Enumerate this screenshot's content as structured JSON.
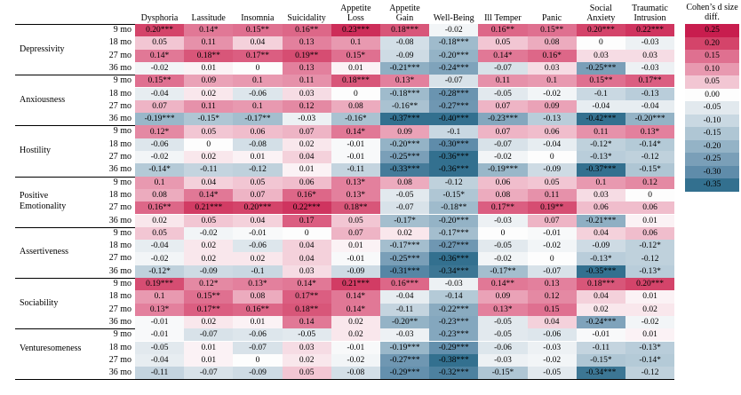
{
  "chart_data": {
    "type": "heatmap",
    "columns": [
      "Dysphoria",
      "Lassitude",
      "Insomnia",
      "Suicidality",
      "Appetite Loss",
      "Appetite Gain",
      "Well-Being",
      "Ill Temper",
      "Panic",
      "Social Anxiety",
      "Traumatic Intrusion"
    ],
    "time_labels": [
      "9 mo",
      "18 mo",
      "27 mo",
      "36 mo"
    ],
    "groups": [
      {
        "name": "Depressivity",
        "rows": [
          [
            "0.20***",
            "0.14*",
            "0.15**",
            "0.16**",
            "0.23***",
            "0.18***",
            "-0.02",
            "0.16**",
            "0.15**",
            "0.20***",
            "0.22***"
          ],
          [
            "0.05",
            "0.11",
            "0.04",
            "0.13",
            "0.1",
            "-0.08",
            "-0.18***",
            "0.05",
            "0.08",
            "0",
            "-0.03"
          ],
          [
            "0.14*",
            "0.18**",
            "0.17**",
            "0.19**",
            "0.15*",
            "-0.09",
            "-0.20***",
            "0.14*",
            "0.16*",
            "0.03",
            "0.03"
          ],
          [
            "-0.02",
            "0.01",
            "0",
            "0.13",
            "0.01",
            "-0.21***",
            "-0.24***",
            "-0.07",
            "0.03",
            "-0.25***",
            "-0.03"
          ]
        ]
      },
      {
        "name": "Anxiousness",
        "rows": [
          [
            "0.15**",
            "0.09",
            "0.1",
            "0.11",
            "0.18***",
            "0.13*",
            "-0.07",
            "0.11",
            "0.1",
            "0.15**",
            "0.17**"
          ],
          [
            "-0.04",
            "0.02",
            "-0.06",
            "0.03",
            "0",
            "-0.18***",
            "-0.28***",
            "-0.05",
            "-0.02",
            "-0.1",
            "-0.13"
          ],
          [
            "0.07",
            "0.11",
            "0.1",
            "0.12",
            "0.08",
            "-0.16**",
            "-0.27***",
            "0.07",
            "0.09",
            "-0.04",
            "-0.04"
          ],
          [
            "-0.19***",
            "-0.15*",
            "-0.17**",
            "-0.03",
            "-0.16*",
            "-0.37***",
            "-0.40***",
            "-0.23***",
            "-0.13",
            "-0.42***",
            "-0.20***"
          ]
        ]
      },
      {
        "name": "Hostility",
        "rows": [
          [
            "0.12*",
            "0.05",
            "0.06",
            "0.07",
            "0.14*",
            "0.09",
            "-0.1",
            "0.07",
            "0.06",
            "0.11",
            "0.13*"
          ],
          [
            "-0.06",
            "0",
            "-0.08",
            "0.02",
            "-0.01",
            "-0.20***",
            "-0.30***",
            "-0.07",
            "-0.04",
            "-0.12*",
            "-0.14*"
          ],
          [
            "-0.02",
            "0.02",
            "0.01",
            "0.04",
            "-0.01",
            "-0.25***",
            "-0.36***",
            "-0.02",
            "0",
            "-0.13*",
            "-0.12"
          ],
          [
            "-0.14*",
            "-0.11",
            "-0.12",
            "0.01",
            "-0.11",
            "-0.33***",
            "-0.36***",
            "-0.19***",
            "-0.09",
            "-0.37***",
            "-0.15*"
          ]
        ]
      },
      {
        "name": "Positive Emotionality",
        "rows": [
          [
            "0.1",
            "0.04",
            "0.05",
            "0.06",
            "0.13*",
            "0.08",
            "-0.12",
            "0.06",
            "0.05",
            "0.1",
            "0.12"
          ],
          [
            "0.08",
            "0.14*",
            "0.07",
            "0.16*",
            "0.13*",
            "-0.05",
            "-0.15*",
            "0.08",
            "0.11",
            "0.03",
            "0"
          ],
          [
            "0.16**",
            "0.21***",
            "0.20***",
            "0.22***",
            "0.18**",
            "-0.07",
            "-0.18**",
            "0.17**",
            "0.19**",
            "0.06",
            "0.06"
          ],
          [
            "0.02",
            "0.05",
            "0.04",
            "0.17",
            "0.05",
            "-0.17*",
            "-0.20***",
            "-0.03",
            "0.07",
            "-0.21***",
            "0.01"
          ]
        ]
      },
      {
        "name": "Assertiveness",
        "rows": [
          [
            "0.05",
            "-0.02",
            "-0.01",
            "0",
            "0.07",
            "0.02",
            "-0.17***",
            "0",
            "-0.01",
            "0.04",
            "0.06"
          ],
          [
            "-0.04",
            "0.02",
            "-0.06",
            "0.04",
            "0.01",
            "-0.17***",
            "-0.27***",
            "-0.05",
            "-0.02",
            "-0.09",
            "-0.12*"
          ],
          [
            "-0.02",
            "0.02",
            "0.02",
            "0.04",
            "-0.01",
            "-0.25***",
            "-0.36***",
            "-0.02",
            "0",
            "-0.13*",
            "-0.12"
          ],
          [
            "-0.12*",
            "-0.09",
            "-0.1",
            "0.03",
            "-0.09",
            "-0.31***",
            "-0.34***",
            "-0.17**",
            "-0.07",
            "-0.35***",
            "-0.13*"
          ]
        ]
      },
      {
        "name": "Sociability",
        "rows": [
          [
            "0.19***",
            "0.12*",
            "0.13*",
            "0.14*",
            "0.21***",
            "0.16***",
            "-0.03",
            "0.14**",
            "0.13",
            "0.18***",
            "0.20***"
          ],
          [
            "0.1",
            "0.15**",
            "0.08",
            "0.17**",
            "0.14*",
            "-0.04",
            "-0.14",
            "0.09",
            "0.12",
            "0.04",
            "0.01"
          ],
          [
            "0.13*",
            "0.17**",
            "0.16**",
            "0.18**",
            "0.14*",
            "-0.11",
            "-0.22***",
            "0.13*",
            "0.15",
            "0.02",
            "0.02"
          ],
          [
            "-0.01",
            "0.02",
            "0.01",
            "0.14",
            "0.02",
            "-0.20**",
            "-0.23***",
            "-0.05",
            "0.04",
            "-0.24***",
            "-0.02"
          ]
        ]
      },
      {
        "name": "Venturesomeness",
        "rows": [
          [
            "-0.01",
            "-0.07",
            "-0.06",
            "-0.05",
            "0.02",
            "-0.03",
            "-0.23***",
            "-0.05",
            "-0.06",
            "-0.01",
            "0.01"
          ],
          [
            "-0.05",
            "0.01",
            "-0.07",
            "0.03",
            "-0.01",
            "-0.19***",
            "-0.29***",
            "-0.06",
            "-0.03",
            "-0.11",
            "-0.13*"
          ],
          [
            "-0.04",
            "0.01",
            "0",
            "0.02",
            "-0.02",
            "-0.27***",
            "-0.38***",
            "-0.03",
            "-0.02",
            "-0.15*",
            "-0.14*"
          ],
          [
            "-0.11",
            "-0.07",
            "-0.09",
            "0.05",
            "-0.08",
            "-0.29***",
            "-0.32***",
            "-0.15*",
            "-0.05",
            "-0.34***",
            "-0.12"
          ]
        ]
      }
    ],
    "legend": {
      "title": "Cohen’s d size diff.",
      "stops": [
        {
          "label": "0.25",
          "value": 0.25,
          "color": "#c81d4e"
        },
        {
          "label": "0.20",
          "value": 0.2,
          "color": "#d4446a"
        },
        {
          "label": "0.15",
          "value": 0.15,
          "color": "#df7090"
        },
        {
          "label": "0.10",
          "value": 0.1,
          "color": "#e899b0"
        },
        {
          "label": "0.05",
          "value": 0.05,
          "color": "#f2c6d3"
        },
        {
          "label": "0.00",
          "value": 0.0,
          "color": "#fdfdfd"
        },
        {
          "label": "-0.05",
          "value": -0.05,
          "color": "#e2e9ee"
        },
        {
          "label": "-0.10",
          "value": -0.1,
          "color": "#c9d8e2"
        },
        {
          "label": "-0.15",
          "value": -0.15,
          "color": "#afc6d4"
        },
        {
          "label": "-0.20",
          "value": -0.2,
          "color": "#94b3c6"
        },
        {
          "label": "-0.25",
          "value": -0.25,
          "color": "#7a9fb8"
        },
        {
          "label": "-0.30",
          "value": -0.3,
          "color": "#5f8caa"
        },
        {
          "label": "-0.35",
          "value": -0.35,
          "color": "#33708f"
        }
      ],
      "position": "right"
    }
  }
}
